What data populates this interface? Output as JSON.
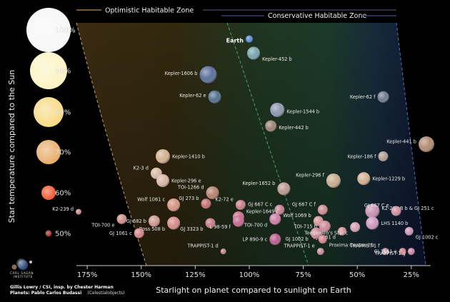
{
  "chart_data": {
    "type": "scatter",
    "xlabel": "Starlight on planet compared to sunlight on Earth",
    "ylabel": "Star temperature compared to the Sun",
    "x_ticks": [
      "175%",
      "150%",
      "125%",
      "100%",
      "75%",
      "50%",
      "25%"
    ],
    "x_axis_reversed": true,
    "xlim": [
      180,
      16
    ],
    "legend": [
      {
        "name": "Optimistic Habitable Zone",
        "color": "#b98b4e"
      },
      {
        "name": "Conservative Habitable Zone",
        "color": "#3f4f8f"
      }
    ],
    "star_temperature_scale": [
      {
        "label": "100%",
        "color": "#f6f6f6"
      },
      {
        "label": "90%",
        "color": "#fbf2be"
      },
      {
        "label": "80%",
        "color": "#f6d77a"
      },
      {
        "label": "70%",
        "color": "#e5a65e"
      },
      {
        "label": "60%",
        "color": "#ef4a1e"
      },
      {
        "label": "50%",
        "color": "#8a1812"
      }
    ],
    "planets": [
      {
        "name": "Earth",
        "x": 100,
        "y": 100,
        "r": 5,
        "color": "#5f8fd6",
        "lx": 2,
        "ly": 0.06
      },
      {
        "name": "Kepler-452 b",
        "x": 98,
        "y": 96.5,
        "r": 9,
        "color": "#7aa5b0",
        "lx": 1,
        "ly": 0.2
      },
      {
        "name": "Kepler-1606 b",
        "x": 119,
        "y": 91.2,
        "r": 12,
        "color": "#5a6f9a",
        "lx": 0,
        "ly": -0.05
      },
      {
        "name": "Kepler-62 e",
        "x": 116,
        "y": 85.7,
        "r": 9,
        "color": "#55718f",
        "lx": 0,
        "ly": -0.05
      },
      {
        "name": "Kepler-1544 b",
        "x": 87,
        "y": 82.5,
        "r": 10,
        "color": "#8d98ae",
        "lx": 1,
        "ly": 0.05
      },
      {
        "name": "Kepler-442 b",
        "x": 90,
        "y": 78.5,
        "r": 8,
        "color": "#9a8576",
        "lx": 1,
        "ly": 0.05
      },
      {
        "name": "Kepler-62 f",
        "x": 38,
        "y": 85.7,
        "r": 8,
        "color": "#6f7b8e",
        "lx": 0,
        "ly": 0
      },
      {
        "name": "Kepler-441 b",
        "x": 18,
        "y": 74,
        "r": 11,
        "color": "#b08c74",
        "lx": 0,
        "ly": -0.1
      },
      {
        "name": "Kepler-186 f",
        "x": 38,
        "y": 71,
        "r": 7,
        "color": "#b39e90",
        "lx": 0,
        "ly": 0
      },
      {
        "name": "Kepler-1410 b",
        "x": 140,
        "y": 71,
        "r": 10,
        "color": "#d2b28f",
        "lx": 1,
        "ly": 0
      },
      {
        "name": "K2-3 d",
        "x": 143,
        "y": 66.8,
        "r": 8,
        "color": "#d7bba4",
        "lx": 0,
        "ly": -0.2
      },
      {
        "name": "Kepler-296 e",
        "x": 140,
        "y": 65,
        "r": 9,
        "color": "#d7b7a3",
        "lx": 1,
        "ly": 0
      },
      {
        "name": "Kepler-1652 b",
        "x": 84,
        "y": 63,
        "r": 9,
        "color": "#b79b8f",
        "lx": 0,
        "ly": -0.2
      },
      {
        "name": "Kepler-296 f",
        "x": 61,
        "y": 65,
        "r": 10,
        "color": "#c9ab8f",
        "lx": 0,
        "ly": -0.2
      },
      {
        "name": "Kepler-1229 b",
        "x": 47,
        "y": 65.5,
        "r": 9,
        "color": "#d2b193",
        "lx": 1,
        "ly": 0
      },
      {
        "name": "TOI-1266 d",
        "x": 117,
        "y": 62,
        "r": 9,
        "color": "#b7816f",
        "lx": 0,
        "ly": -0.2
      },
      {
        "name": "GJ 273 b",
        "x": 120,
        "y": 59.3,
        "r": 7,
        "color": "#c46f72",
        "lx": 0,
        "ly": -0.2
      },
      {
        "name": "Wolf 1061 c",
        "x": 135,
        "y": 59,
        "r": 9,
        "color": "#d59483",
        "lx": 0,
        "ly": -0.2
      },
      {
        "name": "K2-72 e",
        "x": 104,
        "y": 59,
        "r": 7,
        "color": "#c77d89",
        "lx": 0,
        "ly": -0.2
      },
      {
        "name": "GJ 667 C c",
        "x": 86,
        "y": 57.8,
        "r": 7,
        "color": "#c57f94",
        "lx": 0,
        "ly": -0.2
      },
      {
        "name": "GJ 667 C f",
        "x": 66,
        "y": 57.8,
        "r": 7,
        "color": "#cf8a92",
        "lx": 0,
        "ly": -0.2
      },
      {
        "name": "K2-288 B b & GJ 251 c",
        "x": 43,
        "y": 57.5,
        "r": 10,
        "color": "#c891b1",
        "lx": 1,
        "ly": -0.1
      },
      {
        "name": "GJ 667 C e",
        "x": 32,
        "y": 57.5,
        "r": 7,
        "color": "#cd8f9c",
        "lx": 0,
        "ly": -0.2
      },
      {
        "name": "K2-239 d",
        "x": 179,
        "y": 57.3,
        "r": 4,
        "color": "#c98c84",
        "lx": 0,
        "ly": -0.1
      },
      {
        "name": "Kepler-1649 c",
        "x": 105,
        "y": 56,
        "r": 8,
        "color": "#c96f8a",
        "lx": 1,
        "ly": -0.2
      },
      {
        "name": "TOI-700 e",
        "x": 159,
        "y": 55.5,
        "r": 7,
        "color": "#cf8f8a",
        "lx": 0,
        "ly": 0.2
      },
      {
        "name": "GJ 682 b",
        "x": 144,
        "y": 55,
        "r": 8,
        "color": "#d19991",
        "lx": 0,
        "ly": 0
      },
      {
        "name": "GJ 3323 b",
        "x": 118,
        "y": 54.5,
        "r": 7,
        "color": "#c47b88",
        "lx": 0,
        "ly": 0.2
      },
      {
        "name": "L 98-59 f",
        "x": 105,
        "y": 55,
        "r": 8,
        "color": "#c46a8d",
        "lx": 0,
        "ly": 0.2
      },
      {
        "name": "TOI-700 d",
        "x": 88,
        "y": 55.5,
        "r": 8,
        "color": "#cc7fa2",
        "lx": 0,
        "ly": 0.2
      },
      {
        "name": "Wolf 1069 b",
        "x": 68,
        "y": 55,
        "r": 7,
        "color": "#d4959a",
        "lx": 0,
        "ly": -0.2
      },
      {
        "name": "TOI-715 b",
        "x": 65,
        "y": 53.7,
        "r": 8,
        "color": "#cd8a99",
        "lx": 0,
        "ly": 0
      },
      {
        "name": "LHS 1140 b",
        "x": 43,
        "y": 54.5,
        "r": 9,
        "color": "#cf99c0",
        "lx": 1,
        "ly": 0
      },
      {
        "name": "Ross 508 b",
        "x": 135,
        "y": 54.5,
        "r": 9,
        "color": "#d48c8a",
        "lx": 0,
        "ly": 0.2
      },
      {
        "name": "GJ 1061 c",
        "x": 151,
        "y": 52,
        "r": 7,
        "color": "#d2888c",
        "lx": 0,
        "ly": 0
      },
      {
        "name": "GJ 1061 d",
        "x": 57,
        "y": 52.5,
        "r": 6,
        "color": "#d38f97",
        "lx": 0,
        "ly": 0.2
      },
      {
        "name": "GJ 1002 b",
        "x": 69,
        "y": 52,
        "r": 8,
        "color": "#cc8596",
        "lx": 0,
        "ly": 0.2
      },
      {
        "name": "Teegarden's Star c",
        "x": 51,
        "y": 53.5,
        "r": 7,
        "color": "#d59fb5",
        "lx": 0,
        "ly": 0.2
      },
      {
        "name": "GJ 1002 c",
        "x": 26,
        "y": 52.5,
        "r": 6,
        "color": "#c895b8",
        "lx": 1,
        "ly": 0.2
      },
      {
        "name": "LP 890-9 c",
        "x": 88,
        "y": 50.5,
        "r": 8,
        "color": "#b85e8d",
        "lx": 0,
        "ly": 0
      },
      {
        "name": "Proxima Centauri b",
        "x": 66,
        "y": 50.5,
        "r": 6,
        "color": "#d38592",
        "lx": 1,
        "ly": 0.2
      },
      {
        "name": "TRAPPIST-1 d",
        "x": 112,
        "y": 47.5,
        "r": 4,
        "color": "#c3868f",
        "lx": 0,
        "ly": -0.2
      },
      {
        "name": "TRAPPIST-1 e",
        "x": 67,
        "y": 47.5,
        "r": 5,
        "color": "#c98a9a",
        "lx": 0,
        "ly": -0.2
      },
      {
        "name": "TRAPPIST-1 f",
        "x": 37,
        "y": 47.5,
        "r": 5,
        "color": "#bf8296",
        "lx": 0,
        "ly": -0.2
      },
      {
        "name": "GJ 1061 e",
        "x": 29,
        "y": 47.5,
        "r": 5,
        "color": "#cc7c87",
        "lx": -1,
        "ly": 0
      },
      {
        "name": "TRAPPIST-1 g",
        "x": 25,
        "y": 47.5,
        "r": 5,
        "color": "#c685a3",
        "lx": 0,
        "ly": 0.06
      }
    ]
  },
  "credits": {
    "line1": "Gillis Lowry / CSI, insp. by Chester Harman",
    "line2_bold": "Planets: Pablo Carlos Budassi",
    "line2_rest": "(Celestialobjects)",
    "logo_text_1": "CARL SAGAN",
    "logo_text_2": "INSTITUTE"
  }
}
